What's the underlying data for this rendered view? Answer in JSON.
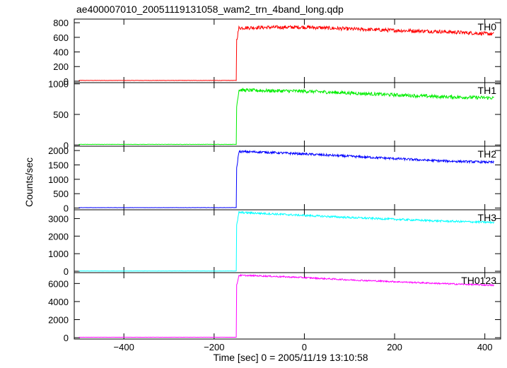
{
  "page": {
    "title": "ae400007010_20051119131058_wam2_trn_4band_long.qdp"
  },
  "chart_data": {
    "type": "line",
    "title": "ae400007010_20051119131058_wam2_trn_4band_long.qdp",
    "xlabel": "Time [sec] 0 = 2005/11/19 13:10:58",
    "ylabel": "Counts/sec",
    "xlim": [
      -510,
      435
    ],
    "x_ticks": [
      -400,
      -200,
      0,
      200,
      400
    ],
    "x_tick_labels": [
      "−400",
      "−200",
      "0",
      "200",
      "400"
    ],
    "grid": false,
    "panels": [
      {
        "name": "TH0",
        "color": "#ff0000",
        "ylim": [
          -20,
          850
        ],
        "y_ticks": [
          0,
          200,
          400,
          600,
          800
        ],
        "y_tick_labels": [
          "0",
          "200",
          "400",
          "600",
          "800"
        ],
        "pre_level": 10,
        "step_x": -150,
        "points": [
          [
            -150,
            560
          ],
          [
            -145,
            730
          ],
          [
            -100,
            735
          ],
          [
            0,
            740
          ],
          [
            100,
            715
          ],
          [
            200,
            695
          ],
          [
            300,
            680
          ],
          [
            420,
            645
          ]
        ],
        "noise": 25
      },
      {
        "name": "TH1",
        "color": "#00ee00",
        "ylim": [
          -20,
          1020
        ],
        "y_ticks": [
          0,
          500,
          1000
        ],
        "y_tick_labels": [
          "0",
          "500",
          "1000"
        ],
        "pre_level": 10,
        "step_x": -150,
        "points": [
          [
            -150,
            640
          ],
          [
            -145,
            900
          ],
          [
            -100,
            890
          ],
          [
            0,
            880
          ],
          [
            100,
            850
          ],
          [
            200,
            820
          ],
          [
            300,
            790
          ],
          [
            420,
            770
          ]
        ],
        "noise": 28
      },
      {
        "name": "TH2",
        "color": "#0000ff",
        "ylim": [
          -60,
          2150
        ],
        "y_ticks": [
          0,
          500,
          1000,
          1500,
          2000
        ],
        "y_tick_labels": [
          "0",
          "500",
          "1000",
          "1500",
          "2000"
        ],
        "pre_level": 15,
        "step_x": -150,
        "points": [
          [
            -150,
            1400
          ],
          [
            -145,
            1960
          ],
          [
            -100,
            1950
          ],
          [
            0,
            1880
          ],
          [
            100,
            1800
          ],
          [
            200,
            1720
          ],
          [
            300,
            1640
          ],
          [
            420,
            1590
          ]
        ],
        "noise": 40
      },
      {
        "name": "TH3",
        "color": "#00ffff",
        "ylim": [
          -80,
          3500
        ],
        "y_ticks": [
          0,
          1000,
          2000,
          3000
        ],
        "y_tick_labels": [
          "0",
          "1000",
          "2000",
          "3000"
        ],
        "pre_level": 15,
        "step_x": -150,
        "points": [
          [
            -150,
            2600
          ],
          [
            -145,
            3350
          ],
          [
            -100,
            3300
          ],
          [
            0,
            3180
          ],
          [
            100,
            3060
          ],
          [
            200,
            2960
          ],
          [
            300,
            2860
          ],
          [
            420,
            2780
          ]
        ],
        "noise": 55
      },
      {
        "name": "TH0123",
        "color": "#ff00ff",
        "ylim": [
          -150,
          7200
        ],
        "y_ticks": [
          0,
          2000,
          4000,
          6000
        ],
        "y_tick_labels": [
          "0",
          "2000",
          "4000",
          "6000"
        ],
        "pre_level": 50,
        "step_x": -150,
        "points": [
          [
            -150,
            5800
          ],
          [
            -145,
            6900
          ],
          [
            -100,
            6850
          ],
          [
            0,
            6650
          ],
          [
            100,
            6400
          ],
          [
            200,
            6200
          ],
          [
            300,
            6000
          ],
          [
            420,
            5800
          ]
        ],
        "noise": 80
      }
    ]
  }
}
